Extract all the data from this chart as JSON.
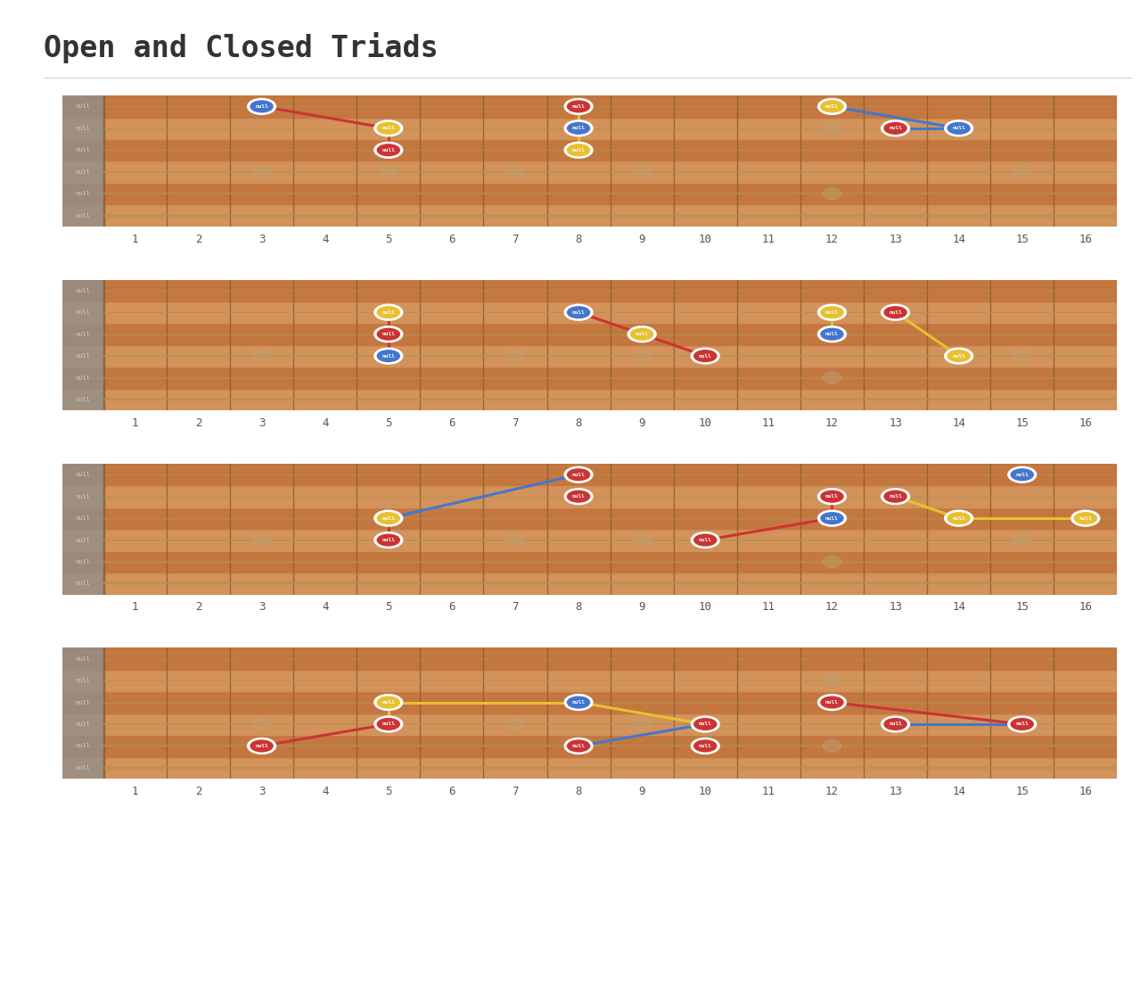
{
  "title": "Open and Closed Triads",
  "title_fontsize": 24,
  "bg_color": "#ffffff",
  "fret_count": 16,
  "string_count": 6,
  "diagrams": [
    {
      "notes": [
        {
          "fret": 3,
          "string": 1,
          "color": "#4477cc",
          "label": "null"
        },
        {
          "fret": 5,
          "string": 2,
          "color": "#e8c030",
          "label": "null"
        },
        {
          "fret": 5,
          "string": 3,
          "color": "#cc3333",
          "label": "null"
        },
        {
          "fret": 8,
          "string": 1,
          "color": "#cc3333",
          "label": "null"
        },
        {
          "fret": 8,
          "string": 2,
          "color": "#4477cc",
          "label": "null"
        },
        {
          "fret": 8,
          "string": 3,
          "color": "#e8c030",
          "label": "null"
        },
        {
          "fret": 12,
          "string": 1,
          "color": "#e8c030",
          "label": "null"
        },
        {
          "fret": 13,
          "string": 2,
          "color": "#cc3333",
          "label": "null"
        },
        {
          "fret": 14,
          "string": 2,
          "color": "#4477cc",
          "label": "null"
        }
      ],
      "connections": [
        {
          "from": [
            3,
            1
          ],
          "to": [
            5,
            2
          ],
          "color": "#cc3333"
        },
        {
          "from": [
            5,
            2
          ],
          "to": [
            5,
            3
          ],
          "color": "#cc3333"
        },
        {
          "from": [
            8,
            1
          ],
          "to": [
            8,
            2
          ],
          "color": "#e8c030"
        },
        {
          "from": [
            8,
            2
          ],
          "to": [
            8,
            3
          ],
          "color": "#e8c030"
        },
        {
          "from": [
            12,
            1
          ],
          "to": [
            14,
            2
          ],
          "color": "#4477cc"
        },
        {
          "from": [
            13,
            2
          ],
          "to": [
            14,
            2
          ],
          "color": "#4477cc"
        }
      ]
    },
    {
      "notes": [
        {
          "fret": 5,
          "string": 2,
          "color": "#e8c030",
          "label": "null"
        },
        {
          "fret": 5,
          "string": 3,
          "color": "#cc3333",
          "label": "null"
        },
        {
          "fret": 5,
          "string": 4,
          "color": "#4477cc",
          "label": "null"
        },
        {
          "fret": 8,
          "string": 2,
          "color": "#4477cc",
          "label": "null"
        },
        {
          "fret": 9,
          "string": 3,
          "color": "#e8c030",
          "label": "null"
        },
        {
          "fret": 10,
          "string": 4,
          "color": "#cc3333",
          "label": "null"
        },
        {
          "fret": 12,
          "string": 2,
          "color": "#e8c030",
          "label": "null"
        },
        {
          "fret": 12,
          "string": 3,
          "color": "#4477cc",
          "label": "null"
        },
        {
          "fret": 13,
          "string": 2,
          "color": "#cc3333",
          "label": "null"
        },
        {
          "fret": 14,
          "string": 4,
          "color": "#e8c030",
          "label": "null"
        }
      ],
      "connections": [
        {
          "from": [
            5,
            2
          ],
          "to": [
            5,
            3
          ],
          "color": "#cc3333"
        },
        {
          "from": [
            5,
            3
          ],
          "to": [
            5,
            4
          ],
          "color": "#cc3333"
        },
        {
          "from": [
            8,
            2
          ],
          "to": [
            9,
            3
          ],
          "color": "#cc3333"
        },
        {
          "from": [
            9,
            3
          ],
          "to": [
            10,
            4
          ],
          "color": "#cc3333"
        },
        {
          "from": [
            12,
            2
          ],
          "to": [
            12,
            3
          ],
          "color": "#e8c030"
        },
        {
          "from": [
            13,
            2
          ],
          "to": [
            14,
            4
          ],
          "color": "#e8c030"
        }
      ]
    },
    {
      "notes": [
        {
          "fret": 5,
          "string": 3,
          "color": "#e8c030",
          "label": "null"
        },
        {
          "fret": 5,
          "string": 4,
          "color": "#cc3333",
          "label": "null"
        },
        {
          "fret": 8,
          "string": 1,
          "color": "#cc3333",
          "label": "null"
        },
        {
          "fret": 8,
          "string": 2,
          "color": "#cc3333",
          "label": "null"
        },
        {
          "fret": 10,
          "string": 4,
          "color": "#cc3333",
          "label": "null"
        },
        {
          "fret": 12,
          "string": 2,
          "color": "#cc3333",
          "label": "null"
        },
        {
          "fret": 12,
          "string": 3,
          "color": "#4477cc",
          "label": "null"
        },
        {
          "fret": 13,
          "string": 2,
          "color": "#cc3333",
          "label": "null"
        },
        {
          "fret": 14,
          "string": 3,
          "color": "#e8c030",
          "label": "null"
        },
        {
          "fret": 15,
          "string": 1,
          "color": "#4477cc",
          "label": "null"
        },
        {
          "fret": 16,
          "string": 3,
          "color": "#e8c030",
          "label": "null"
        }
      ],
      "connections": [
        {
          "from": [
            5,
            3
          ],
          "to": [
            8,
            1
          ],
          "color": "#4477cc"
        },
        {
          "from": [
            5,
            4
          ],
          "to": [
            5,
            3
          ],
          "color": "#cc3333"
        },
        {
          "from": [
            10,
            4
          ],
          "to": [
            12,
            3
          ],
          "color": "#cc3333"
        },
        {
          "from": [
            12,
            2
          ],
          "to": [
            12,
            3
          ],
          "color": "#cc3333"
        },
        {
          "from": [
            13,
            2
          ],
          "to": [
            14,
            3
          ],
          "color": "#e8c030"
        },
        {
          "from": [
            14,
            3
          ],
          "to": [
            16,
            3
          ],
          "color": "#e8c030"
        }
      ]
    },
    {
      "notes": [
        {
          "fret": 3,
          "string": 5,
          "color": "#cc3333",
          "label": "null"
        },
        {
          "fret": 5,
          "string": 3,
          "color": "#e8c030",
          "label": "null"
        },
        {
          "fret": 5,
          "string": 4,
          "color": "#cc3333",
          "label": "null"
        },
        {
          "fret": 8,
          "string": 3,
          "color": "#4477cc",
          "label": "null"
        },
        {
          "fret": 8,
          "string": 5,
          "color": "#cc3333",
          "label": "null"
        },
        {
          "fret": 10,
          "string": 4,
          "color": "#cc3333",
          "label": "null"
        },
        {
          "fret": 10,
          "string": 5,
          "color": "#cc3333",
          "label": "null"
        },
        {
          "fret": 12,
          "string": 3,
          "color": "#cc3333",
          "label": "null"
        },
        {
          "fret": 13,
          "string": 4,
          "color": "#cc3333",
          "label": "null"
        },
        {
          "fret": 15,
          "string": 4,
          "color": "#cc3333",
          "label": "null"
        }
      ],
      "connections": [
        {
          "from": [
            5,
            3
          ],
          "to": [
            8,
            3
          ],
          "color": "#e8c030"
        },
        {
          "from": [
            5,
            4
          ],
          "to": [
            3,
            5
          ],
          "color": "#cc3333"
        },
        {
          "from": [
            5,
            4
          ],
          "to": [
            5,
            3
          ],
          "color": "#e8c030"
        },
        {
          "from": [
            8,
            3
          ],
          "to": [
            10,
            4
          ],
          "color": "#e8c030"
        },
        {
          "from": [
            8,
            5
          ],
          "to": [
            10,
            4
          ],
          "color": "#4477cc"
        },
        {
          "from": [
            12,
            3
          ],
          "to": [
            15,
            4
          ],
          "color": "#cc3333"
        },
        {
          "from": [
            13,
            4
          ],
          "to": [
            15,
            4
          ],
          "color": "#4477cc"
        }
      ]
    }
  ]
}
